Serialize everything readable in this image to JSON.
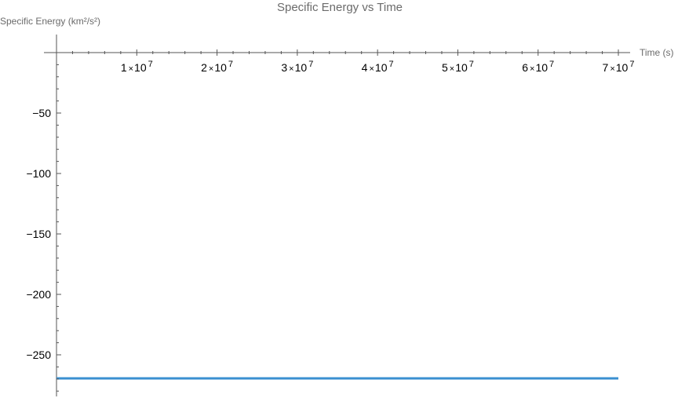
{
  "chart_data": {
    "type": "line",
    "title": "Specific Energy vs Time",
    "xlabel": "Time (s)",
    "ylabel": "Specific Energy (km²/s²)",
    "xlim": [
      0,
      72000000
    ],
    "ylim": [
      -281,
      8
    ],
    "x_ticks": [
      {
        "value": 10000000,
        "mantissa": "1",
        "times": "×",
        "base": "10",
        "exp": "7"
      },
      {
        "value": 20000000,
        "mantissa": "2",
        "times": "×",
        "base": "10",
        "exp": "7"
      },
      {
        "value": 30000000,
        "mantissa": "3",
        "times": "×",
        "base": "10",
        "exp": "7"
      },
      {
        "value": 40000000,
        "mantissa": "4",
        "times": "×",
        "base": "10",
        "exp": "7"
      },
      {
        "value": 50000000,
        "mantissa": "5",
        "times": "×",
        "base": "10",
        "exp": "7"
      },
      {
        "value": 60000000,
        "mantissa": "6",
        "times": "×",
        "base": "10",
        "exp": "7"
      },
      {
        "value": 70000000,
        "mantissa": "7",
        "times": "×",
        "base": "10",
        "exp": "7"
      }
    ],
    "y_ticks": [
      {
        "value": -50,
        "label": "−50"
      },
      {
        "value": -100,
        "label": "−100"
      },
      {
        "value": -150,
        "label": "−150"
      },
      {
        "value": -200,
        "label": "−200"
      },
      {
        "value": -250,
        "label": "−250"
      }
    ],
    "series": [
      {
        "color": "#3a8fd0",
        "x": [
          0,
          70000000
        ],
        "y": [
          -269.5,
          -269.5
        ]
      }
    ],
    "grid": false
  }
}
